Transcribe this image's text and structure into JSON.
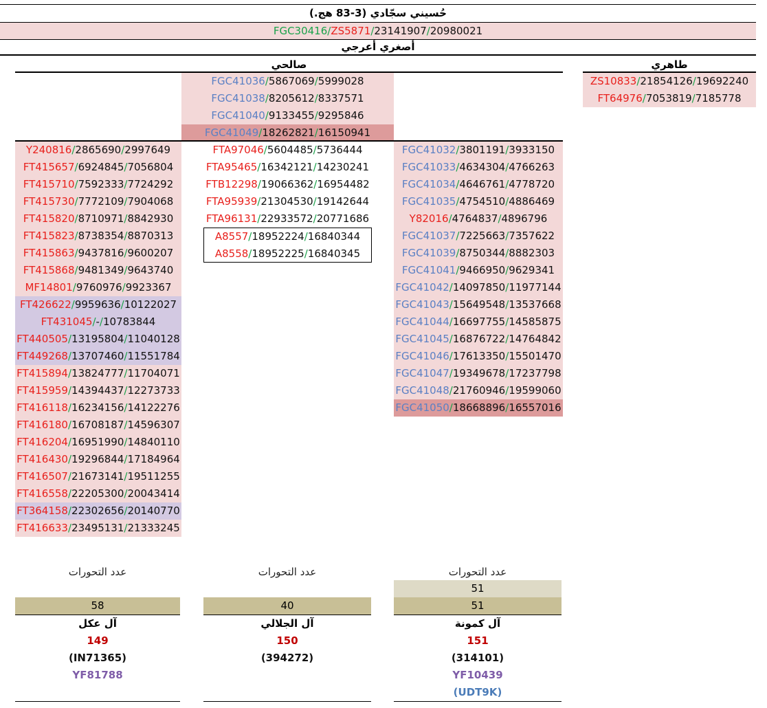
{
  "root": {
    "title": "حُسيني سجّادي (3-83 هج.)",
    "lineage_band": [
      {
        "name": "FGC30416",
        "color": "green"
      },
      {
        "name": "ZS5871",
        "color": "red"
      },
      {
        "name": "23141907",
        "color": "black"
      },
      {
        "name": "20980021",
        "color": "black"
      }
    ]
  },
  "branch_title": "أصغري أعرجي",
  "subbranches": {
    "salehi": "صالحي",
    "tahiri": "طاهري"
  },
  "tahiri_rows": [
    {
      "snp": "ZS10833",
      "color": "red",
      "pos1": "21854126",
      "pos2": "19692240"
    },
    {
      "snp": "FT64976",
      "color": "red",
      "pos1": "7053819",
      "pos2": "7185778"
    }
  ],
  "salehi_top_rows": [
    {
      "snp": "FGC41036",
      "color": "blue",
      "pos1": "5867069",
      "pos2": "5999028",
      "bg": "pink"
    },
    {
      "snp": "FGC41038",
      "color": "blue",
      "pos1": "8205612",
      "pos2": "8337571",
      "bg": "pink"
    },
    {
      "snp": "FGC41040",
      "color": "blue",
      "pos1": "9133455",
      "pos2": "9295846",
      "bg": "pink"
    },
    {
      "snp": "FGC41049",
      "color": "blue",
      "pos1": "18262821",
      "pos2": "16150941",
      "bg": "dark"
    }
  ],
  "left_rows": [
    {
      "snp": "Y240816",
      "color": "red",
      "pos1": "2865690",
      "pos2": "2997649",
      "bg": "pink"
    },
    {
      "snp": "FT415657",
      "color": "red",
      "pos1": "6924845",
      "pos2": "7056804",
      "bg": "pink"
    },
    {
      "snp": "FT415710",
      "color": "red",
      "pos1": "7592333",
      "pos2": "7724292",
      "bg": "pink"
    },
    {
      "snp": "FT415730",
      "color": "red",
      "pos1": "7772109",
      "pos2": "7904068",
      "bg": "pink"
    },
    {
      "snp": "FT415820",
      "color": "red",
      "pos1": "8710971",
      "pos2": "8842930",
      "bg": "pink"
    },
    {
      "snp": "FT415823",
      "color": "red",
      "pos1": "8738354",
      "pos2": "8870313",
      "bg": "pink"
    },
    {
      "snp": "FT415863",
      "color": "red",
      "pos1": "9437816",
      "pos2": "9600207",
      "bg": "pink"
    },
    {
      "snp": "FT415868",
      "color": "red",
      "pos1": "9481349",
      "pos2": "9643740",
      "bg": "pink"
    },
    {
      "snp": "MF14801",
      "color": "red",
      "pos1": "9760976",
      "pos2": "9923367",
      "bg": "pink"
    },
    {
      "snp": "FT426622",
      "color": "red",
      "pos1": "9959636",
      "pos2": "10122027",
      "bg": "blue"
    },
    {
      "snp": "FT431045",
      "color": "red",
      "pos1": "-",
      "pos2": "10783844",
      "bg": "blue"
    },
    {
      "snp": "FT440505",
      "color": "red",
      "pos1": "13195804",
      "pos2": "11040128",
      "bg": "blue"
    },
    {
      "snp": "FT449268",
      "color": "red",
      "pos1": "13707460",
      "pos2": "11551784",
      "bg": "blue"
    },
    {
      "snp": "FT415894",
      "color": "red",
      "pos1": "13824777",
      "pos2": "11704071",
      "bg": "pink"
    },
    {
      "snp": "FT415959",
      "color": "red",
      "pos1": "14394437",
      "pos2": "12273733",
      "bg": "pink"
    },
    {
      "snp": "FT416118",
      "color": "red",
      "pos1": "16234156",
      "pos2": "14122276",
      "bg": "pink"
    },
    {
      "snp": "FT416180",
      "color": "red",
      "pos1": "16708187",
      "pos2": "14596307",
      "bg": "pink"
    },
    {
      "snp": "FT416204",
      "color": "red",
      "pos1": "16951990",
      "pos2": "14840110",
      "bg": "pink"
    },
    {
      "snp": "FT416430",
      "color": "red",
      "pos1": "19296844",
      "pos2": "17184964",
      "bg": "pink"
    },
    {
      "snp": "FT416507",
      "color": "red",
      "pos1": "21673141",
      "pos2": "19511255",
      "bg": "pink"
    },
    {
      "snp": "FT416558",
      "color": "red",
      "pos1": "22205300",
      "pos2": "20043414",
      "bg": "pink"
    },
    {
      "snp": "FT364158",
      "color": "red",
      "pos1": "22302656",
      "pos2": "20140770",
      "bg": "blue"
    },
    {
      "snp": "FT416633",
      "color": "red",
      "pos1": "23495131",
      "pos2": "21333245",
      "bg": "pink"
    }
  ],
  "middle_rows": [
    {
      "snp": "FTA97046",
      "color": "red",
      "pos1": "5604485",
      "pos2": "5736444",
      "bg": "plain"
    },
    {
      "snp": "FTA95465",
      "color": "red",
      "pos1": "16342121",
      "pos2": "14230241",
      "bg": "plain"
    },
    {
      "snp": "FTB12298",
      "color": "red",
      "pos1": "19066362",
      "pos2": "16954482",
      "bg": "plain"
    },
    {
      "snp": "FTA95939",
      "color": "red",
      "pos1": "21304530",
      "pos2": "19142644",
      "bg": "plain"
    },
    {
      "snp": "FTA96131",
      "color": "red",
      "pos1": "22933572",
      "pos2": "20771686",
      "bg": "plain"
    }
  ],
  "middle_boxed_rows": [
    {
      "snp": "A8557",
      "color": "red",
      "pos1": "18952224",
      "pos2": "16840344"
    },
    {
      "snp": "A8558",
      "color": "red",
      "pos1": "18952225",
      "pos2": "16840345"
    }
  ],
  "right_rows": [
    {
      "snp": "FGC41032",
      "color": "blue",
      "pos1": "3801191",
      "pos2": "3933150",
      "bg": "pink"
    },
    {
      "snp": "FGC41033",
      "color": "blue",
      "pos1": "4634304",
      "pos2": "4766263",
      "bg": "pink"
    },
    {
      "snp": "FGC41034",
      "color": "blue",
      "pos1": "4646761",
      "pos2": "4778720",
      "bg": "pink"
    },
    {
      "snp": "FGC41035",
      "color": "blue",
      "pos1": "4754510",
      "pos2": "4886469",
      "bg": "pink"
    },
    {
      "snp": "Y82016",
      "color": "red",
      "pos1": "4764837",
      "pos2": "4896796",
      "bg": "pink"
    },
    {
      "snp": "FGC41037",
      "color": "blue",
      "pos1": "7225663",
      "pos2": "7357622",
      "bg": "pink"
    },
    {
      "snp": "FGC41039",
      "color": "blue",
      "pos1": "8750344",
      "pos2": "8882303",
      "bg": "pink"
    },
    {
      "snp": "FGC41041",
      "color": "blue",
      "pos1": "9466950",
      "pos2": "9629341",
      "bg": "pink"
    },
    {
      "snp": "FGC41042",
      "color": "blue",
      "pos1": "14097850",
      "pos2": "11977144",
      "bg": "pink"
    },
    {
      "snp": "FGC41043",
      "color": "blue",
      "pos1": "15649548",
      "pos2": "13537668",
      "bg": "pink"
    },
    {
      "snp": "FGC41044",
      "color": "blue",
      "pos1": "16697755",
      "pos2": "14585875",
      "bg": "pink"
    },
    {
      "snp": "FGC41045",
      "color": "blue",
      "pos1": "16876722",
      "pos2": "14764842",
      "bg": "pink"
    },
    {
      "snp": "FGC41046",
      "color": "blue",
      "pos1": "17613350",
      "pos2": "15501470",
      "bg": "pink"
    },
    {
      "snp": "FGC41047",
      "color": "blue",
      "pos1": "19349678",
      "pos2": "17237798",
      "bg": "pink"
    },
    {
      "snp": "FGC41048",
      "color": "blue",
      "pos1": "21760946",
      "pos2": "19599060",
      "bg": "pink"
    },
    {
      "snp": "FGC41050",
      "color": "blue",
      "pos1": "18668896",
      "pos2": "16557016",
      "bg": "dark"
    }
  ],
  "mutation_count_label": "عدد التحورات",
  "families": {
    "left": {
      "count": "58",
      "name": "آل عكل",
      "number": "149",
      "code": "(IN71365)",
      "extra": "YF81788"
    },
    "middle": {
      "count": "40",
      "name": "آل الجلالي",
      "number": "150",
      "code": "(394272)"
    },
    "right": {
      "count_top": "51",
      "count": "51",
      "name": "آل كمونة",
      "number": "151",
      "code": "(314101)",
      "extra": "YF10439",
      "extra2": "(UDT9K)"
    }
  },
  "colors": {
    "red": "#e8211d",
    "blue": "#5b80c4",
    "green": "#1aa24a",
    "pink_bg": "#f3d8d8",
    "lavender_bg": "#d3c9e2",
    "dark_pink_bg": "#dd9b9b",
    "count_bg": "#c8bf96"
  }
}
